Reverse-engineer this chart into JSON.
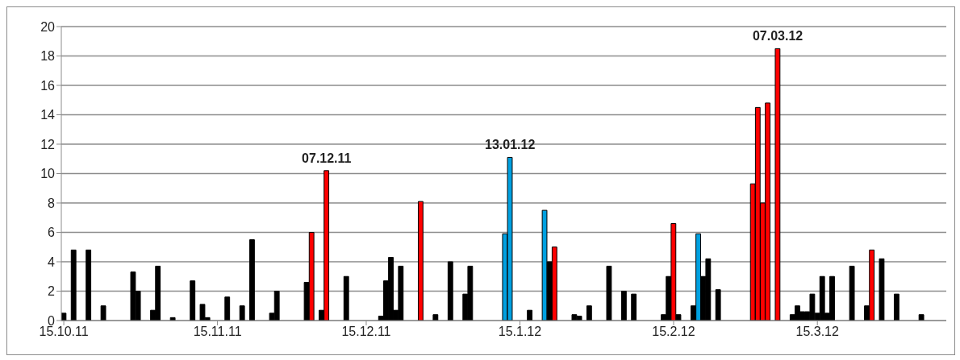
{
  "chart_data": {
    "type": "bar",
    "x": [
      "2011-10-15",
      "2011-10-17",
      "2011-10-20",
      "2011-10-23",
      "2011-10-29",
      "2011-10-30",
      "2011-11-02",
      "2011-11-03",
      "2011-11-06",
      "2011-11-10",
      "2011-11-12",
      "2011-11-13",
      "2011-11-17",
      "2011-11-20",
      "2011-11-22",
      "2011-11-26",
      "2011-11-27",
      "2011-12-03",
      "2011-12-04",
      "2011-12-06",
      "2011-12-07",
      "2011-12-11",
      "2011-12-18",
      "2011-12-19",
      "2011-12-20",
      "2011-12-21",
      "2011-12-22",
      "2011-12-26",
      "2011-12-29",
      "2012-01-01",
      "2012-01-04",
      "2012-01-05",
      "2012-01-12",
      "2012-01-13",
      "2012-01-17",
      "2012-01-20",
      "2012-01-21",
      "2012-01-22",
      "2012-01-26",
      "2012-01-27",
      "2012-01-29",
      "2012-02-02",
      "2012-02-05",
      "2012-02-07",
      "2012-02-13",
      "2012-02-14",
      "2012-02-15",
      "2012-02-16",
      "2012-02-19",
      "2012-02-20",
      "2012-02-21",
      "2012-02-22",
      "2012-02-24",
      "2012-03-02",
      "2012-03-03",
      "2012-03-04",
      "2012-03-05",
      "2012-03-07",
      "2012-03-10",
      "2012-03-11",
      "2012-03-12",
      "2012-03-13",
      "2012-03-14",
      "2012-03-15",
      "2012-03-16",
      "2012-03-17",
      "2012-03-18",
      "2012-03-22",
      "2012-03-25",
      "2012-03-26",
      "2012-03-28",
      "2012-03-31",
      "2012-04-05"
    ],
    "values": [
      0.5,
      4.8,
      4.8,
      1.0,
      3.3,
      2.0,
      0.7,
      3.7,
      0.2,
      2.7,
      1.1,
      0.2,
      1.6,
      1.0,
      5.5,
      0.5,
      2.0,
      2.6,
      6.0,
      0.7,
      10.2,
      3.0,
      0.3,
      2.7,
      4.3,
      0.7,
      3.7,
      8.1,
      0.4,
      4.0,
      1.8,
      3.7,
      5.9,
      11.1,
      0.7,
      7.5,
      4.0,
      5.0,
      0.4,
      0.3,
      1.0,
      3.7,
      2.0,
      1.8,
      0.4,
      3.0,
      6.6,
      0.4,
      1.0,
      5.9,
      3.0,
      4.2,
      2.1,
      9.3,
      14.5,
      8.0,
      14.8,
      18.5,
      0.4,
      1.0,
      0.6,
      0.6,
      1.8,
      0.5,
      3.0,
      0.5,
      3.0,
      3.7,
      1.0,
      4.8,
      4.2,
      1.8,
      0.4
    ],
    "colors": [
      "#000000",
      "#000000",
      "#000000",
      "#000000",
      "#000000",
      "#000000",
      "#000000",
      "#000000",
      "#000000",
      "#000000",
      "#000000",
      "#000000",
      "#000000",
      "#000000",
      "#000000",
      "#000000",
      "#000000",
      "#000000",
      "#ff0000",
      "#000000",
      "#ff0000",
      "#000000",
      "#000000",
      "#000000",
      "#000000",
      "#000000",
      "#000000",
      "#ff0000",
      "#000000",
      "#000000",
      "#000000",
      "#000000",
      "#00a0e0",
      "#00a0e0",
      "#000000",
      "#00a0e0",
      "#000000",
      "#ff0000",
      "#000000",
      "#000000",
      "#000000",
      "#000000",
      "#000000",
      "#000000",
      "#000000",
      "#000000",
      "#ff0000",
      "#000000",
      "#000000",
      "#00a0e0",
      "#000000",
      "#000000",
      "#000000",
      "#ff0000",
      "#ff0000",
      "#ff0000",
      "#ff0000",
      "#ff0000",
      "#000000",
      "#000000",
      "#000000",
      "#000000",
      "#000000",
      "#000000",
      "#000000",
      "#000000",
      "#000000",
      "#000000",
      "#000000",
      "#ff0000",
      "#000000",
      "#000000",
      "#000000"
    ],
    "xlim": [
      "2011-10-14T12:00",
      "2012-04-10"
    ],
    "xticks": [
      {
        "value": "2011-10-15",
        "label": "15.10.11"
      },
      {
        "value": "2011-11-15",
        "label": "15.11.11"
      },
      {
        "value": "2011-12-15",
        "label": "15.12.11"
      },
      {
        "value": "2012-01-15",
        "label": "15.1.12"
      },
      {
        "value": "2012-02-15",
        "label": "15.2.12"
      },
      {
        "value": "2012-03-15",
        "label": "15.3.12"
      }
    ],
    "ylim": [
      0,
      20
    ],
    "yticks": [
      0,
      2,
      4,
      6,
      8,
      10,
      12,
      14,
      16,
      18,
      20
    ],
    "grid": "y",
    "annotations": [
      {
        "text": "07.12.11",
        "x": "2011-12-07",
        "y": 10.2
      },
      {
        "text": "13.01.12",
        "x": "2012-01-13",
        "y": 11.1
      },
      {
        "text": "07.03.12",
        "x": "2012-03-07",
        "y": 18.5
      }
    ]
  }
}
